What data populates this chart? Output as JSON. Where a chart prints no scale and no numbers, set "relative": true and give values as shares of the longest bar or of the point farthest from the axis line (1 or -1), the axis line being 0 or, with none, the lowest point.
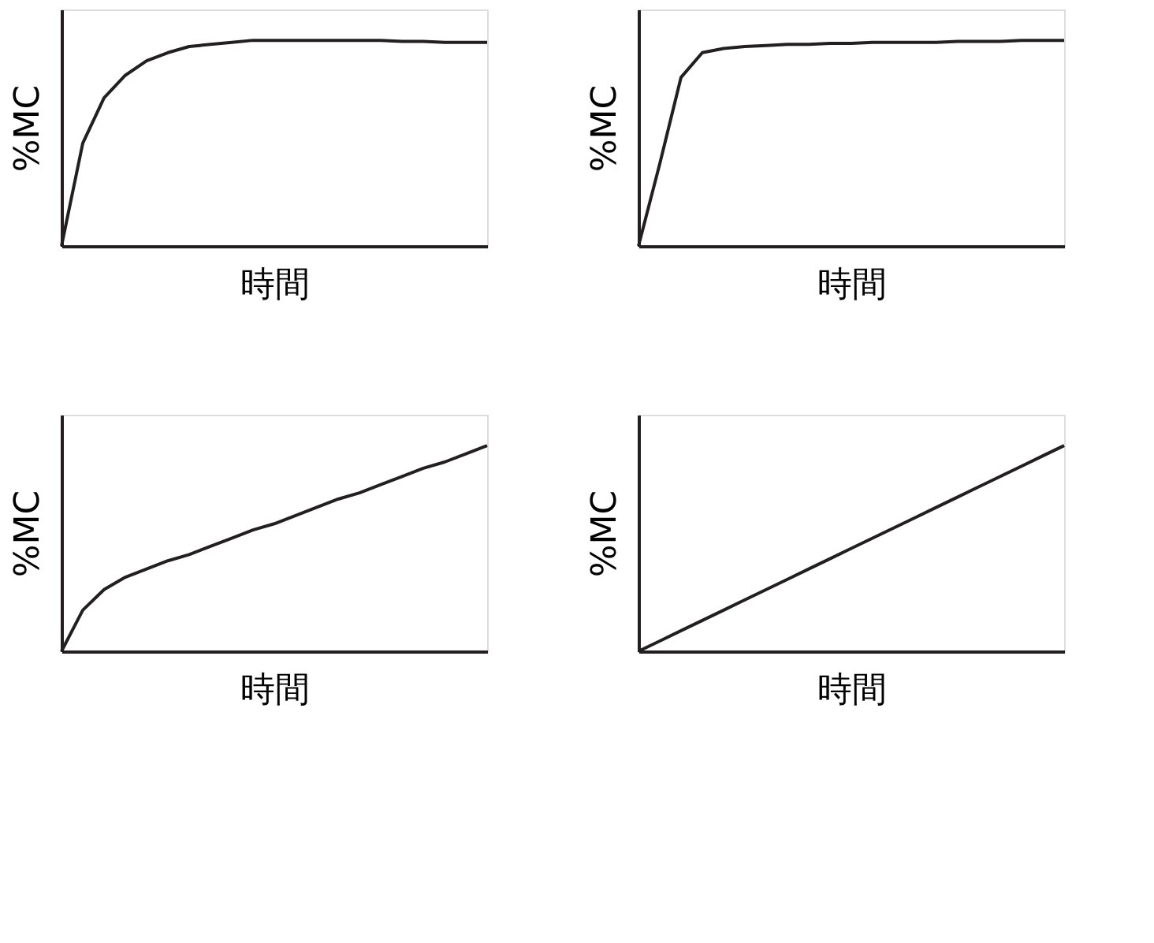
{
  "chart_data": [
    {
      "type": "line",
      "relative": true,
      "ylabel": "%MC",
      "xlabel": "時間",
      "color": "#231f20",
      "grid": false,
      "categories": [
        null,
        null,
        null,
        null,
        null,
        null,
        null,
        null,
        null,
        null,
        null,
        null,
        null,
        null,
        null,
        null,
        null,
        null,
        null,
        null,
        null
      ],
      "values": [
        0,
        0.5,
        0.72,
        0.83,
        0.9,
        0.94,
        0.97,
        0.98,
        0.99,
        1,
        1,
        1,
        1,
        1,
        1,
        1,
        0.995,
        0.995,
        0.99,
        0.99,
        0.99
      ]
    },
    {
      "type": "line",
      "relative": true,
      "ylabel": "%MC",
      "xlabel": "時間",
      "color": "#231f20",
      "grid": false,
      "categories": [
        null,
        null,
        null,
        null,
        null,
        null,
        null,
        null,
        null,
        null,
        null,
        null,
        null,
        null,
        null,
        null,
        null,
        null,
        null,
        null,
        null
      ],
      "values": [
        0,
        0.4,
        0.82,
        0.94,
        0.96,
        0.97,
        0.975,
        0.98,
        0.98,
        0.985,
        0.985,
        0.99,
        0.99,
        0.99,
        0.99,
        0.995,
        0.995,
        0.995,
        1,
        1,
        1
      ]
    },
    {
      "type": "line",
      "relative": true,
      "ylabel": "%MC",
      "xlabel": "時間",
      "color": "#231f20",
      "grid": false,
      "categories": [
        null,
        null,
        null,
        null,
        null,
        null,
        null,
        null,
        null,
        null,
        null,
        null,
        null,
        null,
        null,
        null,
        null,
        null,
        null,
        null,
        null
      ],
      "values": [
        0,
        0.2,
        0.3,
        0.36,
        0.4,
        0.44,
        0.47,
        0.51,
        0.55,
        0.59,
        0.62,
        0.66,
        0.7,
        0.74,
        0.77,
        0.81,
        0.85,
        0.89,
        0.92,
        0.96,
        1
      ]
    },
    {
      "type": "line",
      "relative": true,
      "ylabel": "%MC",
      "xlabel": "時間",
      "color": "#231f20",
      "grid": false,
      "categories": [
        null,
        null,
        null,
        null,
        null,
        null,
        null,
        null,
        null,
        null,
        null,
        null,
        null,
        null,
        null,
        null,
        null,
        null,
        null,
        null,
        null
      ],
      "values": [
        0,
        0.05,
        0.1,
        0.15,
        0.2,
        0.25,
        0.3,
        0.35,
        0.4,
        0.45,
        0.5,
        0.55,
        0.6,
        0.65,
        0.7,
        0.75,
        0.8,
        0.85,
        0.9,
        0.95,
        1
      ]
    }
  ]
}
